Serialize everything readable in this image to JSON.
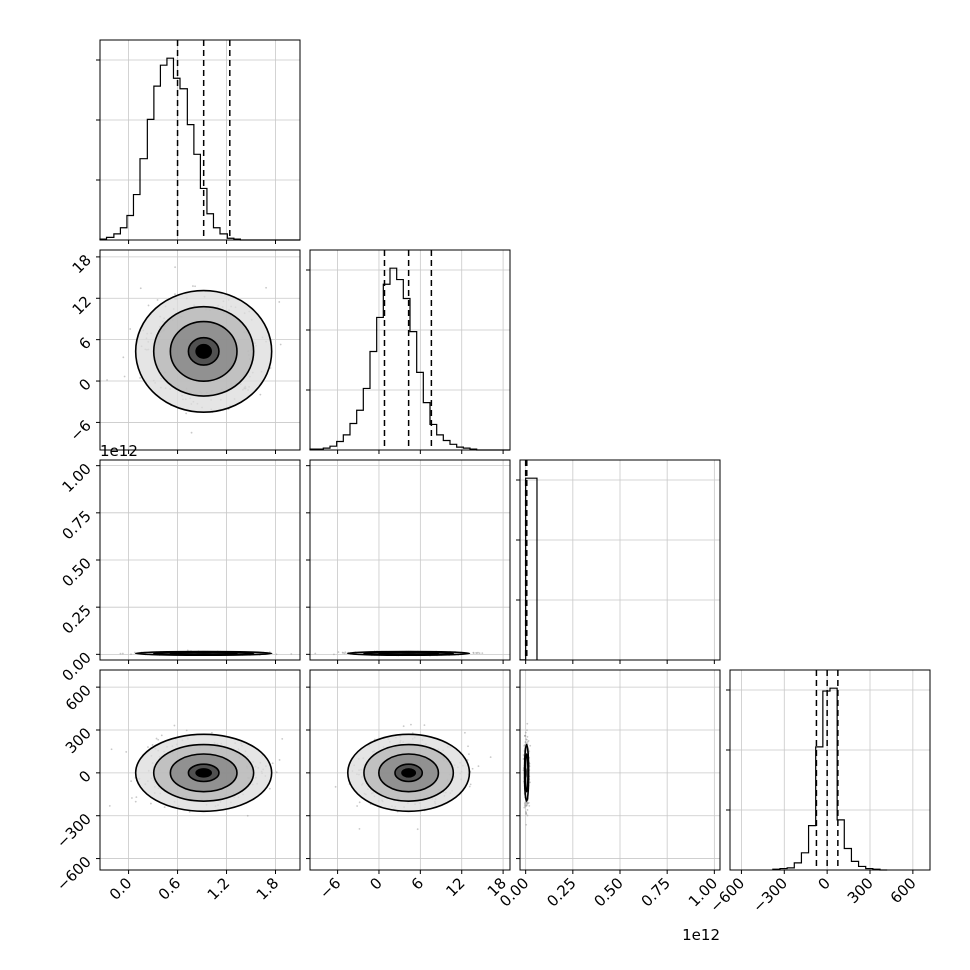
{
  "chart_data": {
    "type": "corner",
    "title": "",
    "grid": true,
    "parameters": [
      {
        "range": [
          -0.35,
          2.1
        ],
        "ticks": [
          0.0,
          0.6,
          1.2,
          1.8
        ],
        "tick_labels": [
          "0.0",
          "0.6",
          "1.2",
          "1.8"
        ],
        "quantiles": [
          0.6,
          0.92,
          1.24
        ],
        "hist": {
          "edges": [
            -0.35,
            -0.27,
            -0.18,
            -0.1,
            -0.02,
            0.06,
            0.14,
            0.23,
            0.31,
            0.39,
            0.47,
            0.55,
            0.63,
            0.72,
            0.8,
            0.88,
            0.96,
            1.04,
            1.12,
            1.21,
            1.29,
            1.37,
            1.45,
            1.53,
            1.61,
            1.7,
            1.78,
            1.86,
            1.94,
            2.02,
            2.1
          ],
          "counts": [
            1,
            3,
            7,
            14,
            28,
            52,
            93,
            138,
            176,
            200,
            208,
            185,
            173,
            132,
            98,
            59,
            30,
            14,
            7,
            2,
            1,
            0,
            0,
            0,
            0,
            0,
            0,
            0,
            0,
            0
          ]
        }
      },
      {
        "range": [
          -10,
          19
        ],
        "ticks": [
          -6,
          0,
          6,
          12,
          18
        ],
        "tick_labels": [
          "−6",
          "0",
          "6",
          "12",
          "18"
        ],
        "quantiles": [
          0.8,
          4.3,
          7.6
        ],
        "hist": {
          "edges": [
            -10,
            -9.03,
            -8.07,
            -7.1,
            -6.13,
            -5.17,
            -4.2,
            -3.23,
            -2.27,
            -1.3,
            -0.33,
            0.63,
            1.6,
            2.57,
            3.53,
            4.5,
            5.47,
            6.43,
            7.4,
            8.37,
            9.33,
            10.3,
            11.27,
            12.23,
            13.2,
            14.17,
            15.13,
            16.1,
            17.07,
            18.03,
            19.0
          ],
          "counts": [
            1,
            1,
            2,
            4,
            9,
            16,
            28,
            42,
            65,
            104,
            140,
            175,
            192,
            180,
            160,
            125,
            82,
            50,
            27,
            16,
            10,
            6,
            3,
            2,
            1,
            0,
            0,
            0,
            0,
            0
          ]
        }
      },
      {
        "range": [
          -0.03,
          1.03
        ],
        "ticks": [
          0.0,
          0.25,
          0.5,
          0.75,
          1.0
        ],
        "tick_labels": [
          "0.00",
          "0.25",
          "0.50",
          "0.75",
          "1.00"
        ],
        "offset_label": "1e12",
        "quantiles": [
          0.0,
          0.003,
          0.006
        ],
        "hist": {
          "edges": [
            -0.03,
            0.0,
            0.06
          ],
          "counts": [
            1,
            1000
          ]
        }
      },
      {
        "range": [
          -680,
          720
        ],
        "ticks": [
          -600,
          -300,
          0,
          300,
          600
        ],
        "tick_labels": [
          "−600",
          "−300",
          "0",
          "300",
          "600"
        ],
        "quantiles": [
          -75,
          0,
          75
        ],
        "hist": {
          "edges": [
            -380,
            -330,
            -280,
            -230,
            -180,
            -130,
            -80,
            -30,
            20,
            70,
            120,
            170,
            220,
            270,
            320,
            370,
            420
          ],
          "counts": [
            1,
            2,
            3,
            10,
            24,
            62,
            172,
            250,
            254,
            70,
            30,
            12,
            5,
            2,
            1,
            0
          ]
        }
      }
    ],
    "pairs": [
      {
        "row": 1,
        "col": 0,
        "center": [
          0.92,
          4.3
        ],
        "spread": [
          0.34,
          3.6
        ],
        "levels": [
          0.55,
          1.2,
          1.8,
          2.45
        ]
      },
      {
        "row": 2,
        "col": 0,
        "center": [
          0.92,
          0.005
        ],
        "spread": [
          0.34,
          0.004
        ],
        "levels": [
          1.2,
          1.8,
          2.45
        ]
      },
      {
        "row": 2,
        "col": 1,
        "center": [
          4.3,
          0.005
        ],
        "spread": [
          3.6,
          0.004
        ],
        "levels": [
          1.2,
          1.8,
          2.45
        ]
      },
      {
        "row": 3,
        "col": 0,
        "center": [
          0.92,
          0
        ],
        "spread": [
          0.34,
          110
        ],
        "levels": [
          0.55,
          1.2,
          1.8,
          2.45
        ]
      },
      {
        "row": 3,
        "col": 1,
        "center": [
          4.3,
          0
        ],
        "spread": [
          3.6,
          110
        ],
        "levels": [
          0.55,
          1.2,
          1.8,
          2.45
        ]
      },
      {
        "row": 3,
        "col": 2,
        "center": [
          0.005,
          0
        ],
        "spread": [
          0.006,
          110
        ],
        "levels": [
          1.2,
          1.8
        ]
      }
    ]
  }
}
